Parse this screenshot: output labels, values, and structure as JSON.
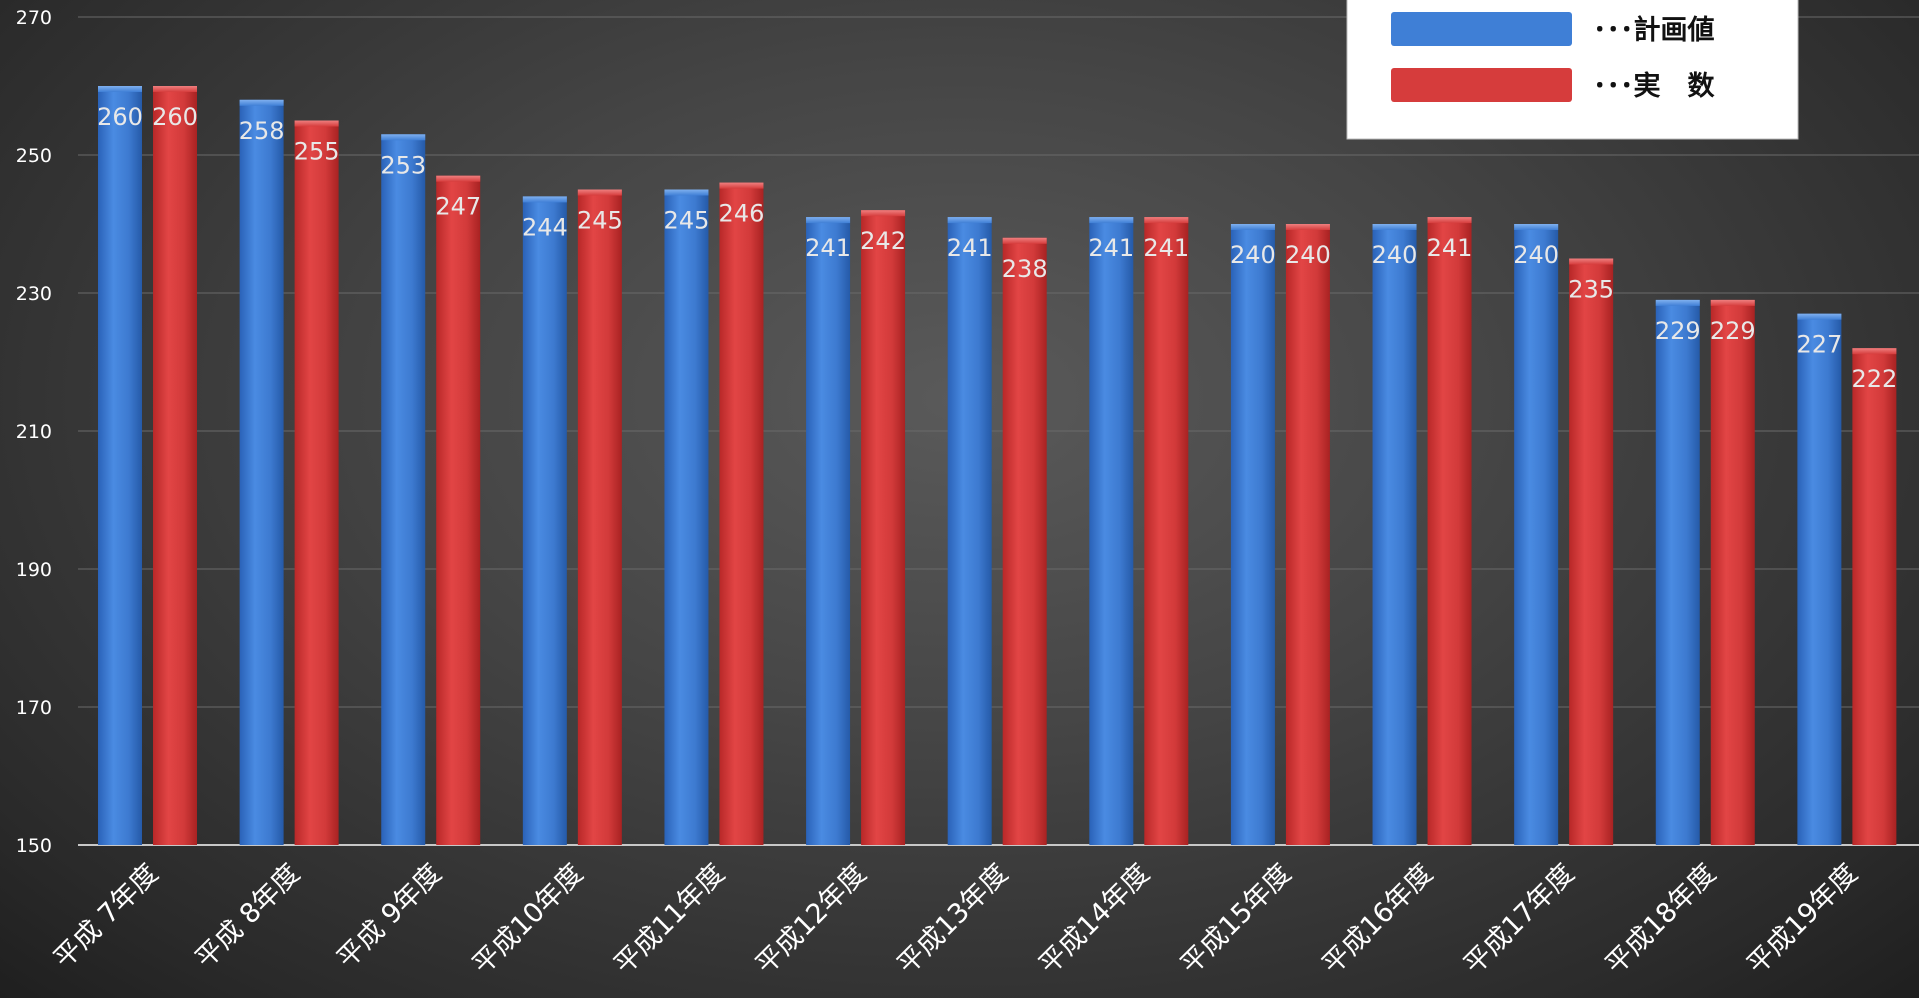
{
  "chart_data": {
    "type": "bar",
    "categories": [
      "平成 7年度",
      "平成 8年度",
      "平成 9年度",
      "平成10年度",
      "平成11年度",
      "平成12年度",
      "平成13年度",
      "平成14年度",
      "平成15年度",
      "平成16年度",
      "平成17年度",
      "平成18年度",
      "平成19年度"
    ],
    "series": [
      {
        "name": "･･･計画値",
        "color": "#3f7fd6",
        "values": [
          260,
          258,
          253,
          244,
          245,
          241,
          241,
          241,
          240,
          240,
          240,
          229,
          227
        ]
      },
      {
        "name": "･･･実　数",
        "color": "#d63c3c",
        "values": [
          260,
          255,
          247,
          245,
          246,
          242,
          238,
          241,
          240,
          241,
          235,
          229,
          222
        ]
      }
    ],
    "ylim": [
      150,
      270
    ],
    "yticks": [
      "150",
      "170",
      "190",
      "210",
      "230",
      "250",
      "270"
    ],
    "grid": true,
    "legend_position": "top-right",
    "data_labels": true,
    "title": "",
    "xlabel": "",
    "ylabel": ""
  }
}
